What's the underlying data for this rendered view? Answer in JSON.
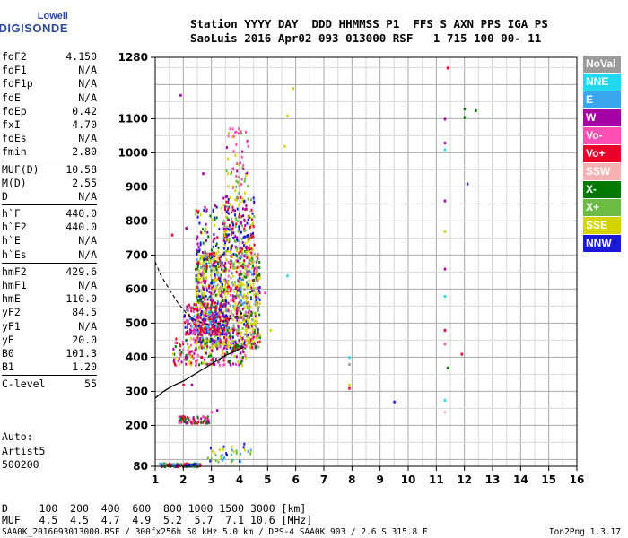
{
  "logo": {
    "line1": "Lowell",
    "line2": "DIGISONDE"
  },
  "header": {
    "line1": "Station YYYY DAY  DDD HHMMSS P1  FFS S AXN PPS IGA PS",
    "line2": "SaoLuis 2016 Apr02 093 013000 RSF   1 715 100 00- 11"
  },
  "params": [
    {
      "k": "foF2",
      "v": "4.150"
    },
    {
      "k": "foF1",
      "v": "N/A"
    },
    {
      "k": "foF1p",
      "v": "N/A"
    },
    {
      "k": "foE",
      "v": "N/A"
    },
    {
      "k": "foEp",
      "v": "0.42"
    },
    {
      "k": "fxI",
      "v": "4.70"
    },
    {
      "k": "foEs",
      "v": "N/A"
    },
    {
      "k": "fmin",
      "v": "2.80"
    },
    {
      "sep": true
    },
    {
      "k": "MUF(D)",
      "v": "10.58"
    },
    {
      "k": "M(D)",
      "v": "2.55"
    },
    {
      "k": "D",
      "v": "N/A"
    },
    {
      "sep": true
    },
    {
      "k": "h`F",
      "v": "440.0"
    },
    {
      "k": "h`F2",
      "v": "440.0"
    },
    {
      "k": "h`E",
      "v": "N/A"
    },
    {
      "k": "h`Es",
      "v": "N/A"
    },
    {
      "sep": true
    },
    {
      "k": "hmF2",
      "v": "429.6"
    },
    {
      "k": "hmF1",
      "v": "N/A"
    },
    {
      "k": "hmE",
      "v": "110.0"
    },
    {
      "k": "yF2",
      "v": "84.5"
    },
    {
      "k": "yF1",
      "v": "N/A"
    },
    {
      "k": "yE",
      "v": "20.0"
    },
    {
      "k": "B0",
      "v": "101.3"
    },
    {
      "k": "B1",
      "v": "1.20"
    },
    {
      "sep": true
    },
    {
      "k": "C-level",
      "v": "55"
    }
  ],
  "auto": [
    "Auto:",
    "Artist5",
    "500200"
  ],
  "legend": [
    {
      "label": "NoVal",
      "color": "#9a9a9a"
    },
    {
      "label": "NNE",
      "color": "#22d8f0"
    },
    {
      "label": "E",
      "color": "#3aa6f0"
    },
    {
      "label": "W",
      "color": "#a400a4"
    },
    {
      "label": "Vo-",
      "color": "#ff4fb4"
    },
    {
      "label": "Vo+",
      "color": "#e8002a"
    },
    {
      "label": "SSW",
      "color": "#f6b2b2"
    },
    {
      "label": "X-",
      "color": "#007a00"
    },
    {
      "label": "X+",
      "color": "#6cbc44"
    },
    {
      "label": "SSE",
      "color": "#d4d400"
    },
    {
      "label": "NNW",
      "color": "#1a1ad4"
    }
  ],
  "footer": {
    "d_line": "D     100  200  400  600  800 1000 1500 3000 [km]",
    "muf_line": "MUF   4.5  4.5  4.7  4.9  5.2  5.7  7.1 10.6 [MHz]",
    "file_line": "SAA0K_2016093013000.RSF / 300fx256h 50 kHz 5.0 km / DPS-4 SAA0K 903 / 2.6 S 315.8 E",
    "version": "Ion2Png 1.3.17"
  },
  "chart_data": {
    "type": "scatter",
    "xlim": [
      1,
      16
    ],
    "ylim": [
      80,
      1280
    ],
    "xticks": [
      "1",
      "2",
      "3",
      "4",
      "5",
      "6",
      "7",
      "8",
      "9",
      "10",
      "11",
      "12",
      "13",
      "14",
      "15",
      "16"
    ],
    "yticks": [
      "80",
      "200",
      "300",
      "400",
      "500",
      "600",
      "700",
      "800",
      "900",
      "1000",
      "1100",
      "1280"
    ],
    "xlabel": "",
    "ylabel": "",
    "grid": true,
    "legend_position": "right",
    "profile_curve": {
      "x": [
        1.0,
        1.3,
        1.6,
        2.0,
        2.5,
        3.0,
        3.5,
        3.9,
        4.15
      ],
      "y": [
        280,
        300,
        315,
        330,
        355,
        380,
        405,
        420,
        430
      ]
    },
    "dashed_curve": {
      "x": [
        1.0,
        1.2,
        1.5,
        1.8,
        2.1,
        2.4,
        2.7,
        3.0,
        3.3,
        3.6,
        3.9,
        4.1
      ],
      "y": [
        680,
        640,
        600,
        560,
        530,
        510,
        500,
        495,
        500,
        510,
        520,
        530
      ]
    },
    "clusters": [
      {
        "x": [
          2.4,
          4.7
        ],
        "y": [
          430,
          720
        ],
        "n": 1100,
        "colors": [
          "SSE",
          "SSE",
          "SSE",
          "SSE",
          "X+",
          "W",
          "Vo+",
          "Vo-",
          "NNW",
          "X-",
          "E",
          "NoVal"
        ]
      },
      {
        "x": [
          2.0,
          3.6
        ],
        "y": [
          470,
          560
        ],
        "n": 260,
        "colors": [
          "Vo+",
          "W",
          "Vo-",
          "NNW",
          "E",
          "Vo+"
        ]
      },
      {
        "x": [
          1.6,
          4.2
        ],
        "y": [
          380,
          460
        ],
        "n": 180,
        "colors": [
          "Vo+",
          "W",
          "Vo-",
          "X-",
          "SSE"
        ]
      },
      {
        "x": [
          3.4,
          4.5
        ],
        "y": [
          720,
          880
        ],
        "n": 190,
        "colors": [
          "SSE",
          "X+",
          "W",
          "NNW",
          "Vo+"
        ]
      },
      {
        "x": [
          2.4,
          3.5
        ],
        "y": [
          550,
          850
        ],
        "n": 160,
        "colors": [
          "W",
          "NNW",
          "Vo+",
          "SSE",
          "X-"
        ]
      },
      {
        "x": [
          3.5,
          4.3
        ],
        "y": [
          880,
          1080
        ],
        "n": 60,
        "colors": [
          "SSE",
          "X+",
          "W",
          "Vo-"
        ]
      },
      {
        "x": [
          1.8,
          2.9
        ],
        "y": [
          210,
          230
        ],
        "n": 70,
        "colors": [
          "Vo-",
          "W",
          "Vo+",
          "X-"
        ]
      },
      {
        "x": [
          1.1,
          2.6
        ],
        "y": [
          82,
          92
        ],
        "n": 120,
        "colors": [
          "X-",
          "X+",
          "NNW",
          "E",
          "W",
          "Vo+"
        ]
      },
      {
        "x": [
          2.8,
          4.4
        ],
        "y": [
          95,
          150
        ],
        "n": 40,
        "colors": [
          "SSE",
          "X+",
          "NNW",
          "E"
        ]
      }
    ],
    "points": [
      {
        "x": 1.9,
        "y": 1170,
        "c": "W"
      },
      {
        "x": 11.4,
        "y": 1250,
        "c": "Vo+"
      },
      {
        "x": 11.3,
        "y": 1100,
        "c": "W"
      },
      {
        "x": 11.3,
        "y": 1030,
        "c": "W"
      },
      {
        "x": 11.3,
        "y": 1010,
        "c": "NNE"
      },
      {
        "x": 11.3,
        "y": 860,
        "c": "W"
      },
      {
        "x": 11.3,
        "y": 770,
        "c": "SSE"
      },
      {
        "x": 11.3,
        "y": 660,
        "c": "W"
      },
      {
        "x": 11.3,
        "y": 580,
        "c": "NNE"
      },
      {
        "x": 11.3,
        "y": 480,
        "c": "Vo+"
      },
      {
        "x": 11.4,
        "y": 370,
        "c": "X-"
      },
      {
        "x": 11.3,
        "y": 275,
        "c": "NNE"
      },
      {
        "x": 11.3,
        "y": 240,
        "c": "SSW"
      },
      {
        "x": 11.3,
        "y": 440,
        "c": "Vo-"
      },
      {
        "x": 11.9,
        "y": 410,
        "c": "Vo+"
      },
      {
        "x": 12.0,
        "y": 1130,
        "c": "X-"
      },
      {
        "x": 12.0,
        "y": 1105,
        "c": "X-"
      },
      {
        "x": 12.4,
        "y": 1125,
        "c": "X-"
      },
      {
        "x": 12.1,
        "y": 910,
        "c": "NNW"
      },
      {
        "x": 9.5,
        "y": 270,
        "c": "NNW"
      },
      {
        "x": 7.9,
        "y": 400,
        "c": "NNE"
      },
      {
        "x": 7.9,
        "y": 380,
        "c": "NoVal"
      },
      {
        "x": 7.9,
        "y": 310,
        "c": "Vo+"
      },
      {
        "x": 7.9,
        "y": 320,
        "c": "SSE"
      },
      {
        "x": 5.9,
        "y": 1190,
        "c": "SSE"
      },
      {
        "x": 5.7,
        "y": 1110,
        "c": "SSE"
      },
      {
        "x": 5.6,
        "y": 1020,
        "c": "SSE"
      },
      {
        "x": 5.7,
        "y": 640,
        "c": "NNE"
      },
      {
        "x": 5.1,
        "y": 480,
        "c": "SSE"
      },
      {
        "x": 4.9,
        "y": 590,
        "c": "Vo-"
      },
      {
        "x": 2.1,
        "y": 780,
        "c": "W"
      },
      {
        "x": 1.6,
        "y": 760,
        "c": "Vo+"
      },
      {
        "x": 2.7,
        "y": 940,
        "c": "W"
      },
      {
        "x": 2.3,
        "y": 320,
        "c": "W"
      },
      {
        "x": 2.0,
        "y": 320,
        "c": "Vo+"
      },
      {
        "x": 3.0,
        "y": 240,
        "c": "Vo-"
      },
      {
        "x": 3.2,
        "y": 245,
        "c": "W"
      }
    ]
  }
}
